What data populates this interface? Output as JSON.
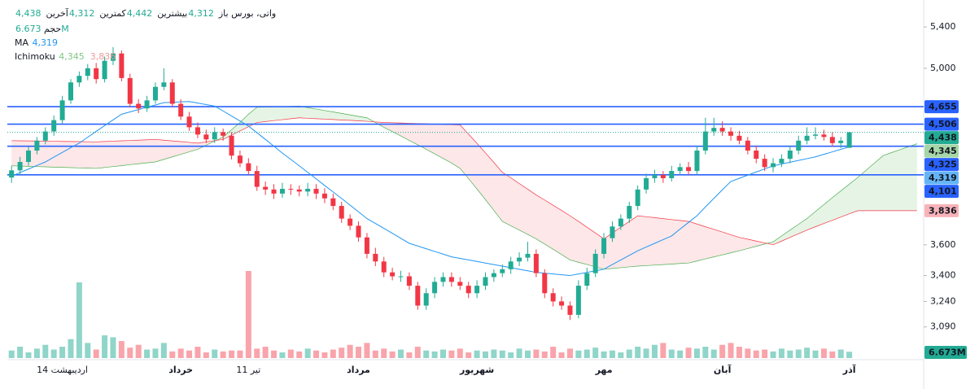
{
  "chart_data": {
    "type": "candlestick",
    "header": {
      "symbol": "واتی، بورس",
      "fields": [
        {
          "name": "باز",
          "value": "4,312"
        },
        {
          "name": "بیشترین",
          "value": "4,442"
        },
        {
          "name": "کمترین",
          "value": "4,312"
        },
        {
          "name": "آخرین",
          "value": "4,438"
        }
      ]
    },
    "categories": [
      null,
      null,
      null,
      null,
      null,
      null,
      "14 اردیبهشت",
      null,
      null,
      null,
      null,
      null,
      null,
      null,
      null,
      null,
      null,
      null,
      null,
      null,
      "خرداد",
      null,
      null,
      null,
      null,
      null,
      null,
      null,
      "11 تیر",
      null,
      null,
      null,
      null,
      null,
      null,
      null,
      null,
      null,
      null,
      null,
      null,
      "مرداد",
      null,
      null,
      null,
      null,
      null,
      null,
      null,
      null,
      null,
      null,
      null,
      null,
      null,
      "شهریور",
      null,
      null,
      null,
      null,
      null,
      null,
      null,
      null,
      null,
      null,
      null,
      null,
      null,
      null,
      "مهر",
      null,
      null,
      null,
      null,
      null,
      null,
      null,
      null,
      null,
      null,
      null,
      null,
      null,
      "آبان",
      null,
      null,
      null,
      null,
      null,
      null,
      null,
      null,
      null,
      null,
      null,
      null,
      null,
      null,
      "آذر",
      null,
      null,
      null,
      null,
      null,
      null,
      null,
      null
    ],
    "ylim": [
      2907,
      5592
    ],
    "log_scale": true,
    "yticks": [
      {
        "value": 5400,
        "label": "5,400"
      },
      {
        "value": 5000,
        "label": "5,000"
      },
      {
        "value": 3600,
        "label": "3,600"
      },
      {
        "value": 3400,
        "label": "3,400"
      },
      {
        "value": 3240,
        "label": "3,240"
      },
      {
        "value": 3090,
        "label": "3,090"
      }
    ],
    "up_color": "#22ab94",
    "down_color": "#f23645",
    "candles": {
      "open": [
        4080,
        4135,
        4200,
        4290,
        4370,
        4445,
        4540,
        4710,
        4870,
        4930,
        5000,
        4900,
        5070,
        5140,
        4910,
        4680,
        4640,
        4710,
        4830,
        4870,
        4680,
        4570,
        4480,
        4420,
        4380,
        4440,
        4410,
        4250,
        4190,
        4130,
        4010,
        3990,
        3960,
        3995,
        3990,
        3975,
        3995,
        3960,
        3925,
        3870,
        3780,
        3730,
        3650,
        3540,
        3490,
        3420,
        3395,
        3395,
        3336,
        3215,
        3290,
        3360,
        3390,
        3360,
        3336,
        3290,
        3336,
        3390,
        3415,
        3440,
        3490,
        3515,
        3540,
        3415,
        3290,
        3240,
        3215,
        3160,
        3336,
        3415,
        3540,
        3645,
        3725,
        3780,
        3870,
        3990,
        4075,
        4100,
        4075,
        4130,
        4160,
        4130,
        4290,
        4445,
        4475,
        4445,
        4410,
        4370,
        4290,
        4225,
        4160,
        4190,
        4225,
        4290,
        4370,
        4410,
        4420,
        4400,
        4350,
        4312,
        null,
        null,
        null,
        null,
        null,
        null,
        null,
        null
      ],
      "high": [
        4170,
        4240,
        4320,
        4400,
        4480,
        4580,
        4750,
        4900,
        4970,
        5040,
        5050,
        5110,
        5200,
        5170,
        4950,
        4720,
        4750,
        4870,
        5000,
        4900,
        4720,
        4610,
        4520,
        4460,
        4480,
        4470,
        4440,
        4290,
        4230,
        4170,
        4050,
        4030,
        4040,
        4030,
        4020,
        4040,
        4030,
        4000,
        3960,
        3900,
        3810,
        3760,
        3680,
        3580,
        3520,
        3450,
        3430,
        3420,
        3360,
        3320,
        3390,
        3420,
        3420,
        3390,
        3360,
        3370,
        3420,
        3440,
        3470,
        3520,
        3550,
        3620,
        3570,
        3440,
        3320,
        3270,
        3240,
        3370,
        3450,
        3570,
        3680,
        3760,
        3810,
        3900,
        4020,
        4110,
        4140,
        4130,
        4170,
        4190,
        4200,
        4330,
        4560,
        4560,
        4530,
        4480,
        4450,
        4400,
        4330,
        4260,
        4230,
        4260,
        4330,
        4410,
        4480,
        4480,
        4460,
        4440,
        4400,
        4442,
        null,
        null,
        null,
        null,
        null,
        null,
        null,
        null
      ],
      "low": [
        4040,
        4100,
        4170,
        4260,
        4340,
        4410,
        4510,
        4680,
        4830,
        4890,
        4860,
        4870,
        5030,
        4880,
        4650,
        4600,
        4610,
        4680,
        4800,
        4650,
        4540,
        4450,
        4390,
        4350,
        4350,
        4370,
        4220,
        4160,
        4100,
        3980,
        3950,
        3920,
        3930,
        3950,
        3940,
        3940,
        3920,
        3890,
        3840,
        3750,
        3700,
        3620,
        3510,
        3460,
        3390,
        3370,
        3360,
        3310,
        3190,
        3190,
        3260,
        3330,
        3330,
        3310,
        3260,
        3260,
        3310,
        3360,
        3390,
        3410,
        3460,
        3490,
        3390,
        3260,
        3210,
        3190,
        3130,
        3140,
        3310,
        3390,
        3510,
        3620,
        3700,
        3750,
        3840,
        3960,
        4040,
        4040,
        4050,
        4100,
        4100,
        4100,
        4260,
        4410,
        4410,
        4370,
        4340,
        4260,
        4190,
        4130,
        4120,
        4160,
        4190,
        4260,
        4340,
        4380,
        4370,
        4320,
        4310,
        4312,
        null,
        null,
        null,
        null,
        null,
        null,
        null,
        null
      ],
      "close": [
        4135,
        4200,
        4290,
        4370,
        4445,
        4540,
        4710,
        4870,
        4930,
        5000,
        4900,
        5070,
        5140,
        4910,
        4680,
        4640,
        4710,
        4830,
        4870,
        4680,
        4570,
        4480,
        4420,
        4380,
        4440,
        4410,
        4250,
        4190,
        4130,
        4010,
        3990,
        3960,
        3995,
        3990,
        3975,
        3995,
        3960,
        3925,
        3870,
        3780,
        3730,
        3650,
        3540,
        3490,
        3420,
        3395,
        3395,
        3336,
        3215,
        3290,
        3360,
        3390,
        3360,
        3336,
        3290,
        3336,
        3390,
        3415,
        3440,
        3490,
        3515,
        3540,
        3415,
        3290,
        3240,
        3215,
        3160,
        3336,
        3415,
        3540,
        3645,
        3725,
        3780,
        3870,
        3990,
        4075,
        4100,
        4075,
        4130,
        4160,
        4130,
        4290,
        4445,
        4475,
        4445,
        4410,
        4370,
        4290,
        4225,
        4160,
        4190,
        4225,
        4290,
        4370,
        4410,
        4420,
        4400,
        4350,
        4370,
        4438,
        null,
        null,
        null,
        null,
        null,
        null,
        null,
        null
      ]
    },
    "volume": {
      "name": "حجم",
      "value_label": "6.673M",
      "values": [
        8,
        12,
        6,
        10,
        14,
        9,
        12,
        20,
        80,
        16,
        9,
        24,
        22,
        18,
        11,
        14,
        9,
        10,
        16,
        7,
        10,
        8,
        12,
        6,
        9,
        7,
        8,
        8,
        92,
        10,
        12,
        8,
        6,
        9,
        7,
        10,
        8,
        6,
        9,
        11,
        14,
        12,
        16,
        8,
        10,
        7,
        9,
        6,
        12,
        8,
        7,
        9,
        8,
        10,
        6,
        8,
        7,
        9,
        8,
        6,
        10,
        8,
        9,
        7,
        12,
        6,
        10,
        8,
        9,
        11,
        7,
        8,
        6,
        9,
        12,
        10,
        14,
        16,
        9,
        8,
        11,
        10,
        12,
        9,
        14,
        16,
        12,
        10,
        8,
        9,
        7,
        10,
        8,
        9,
        11,
        8,
        10,
        7,
        9,
        6.673,
        null,
        null,
        null,
        null,
        null,
        null,
        null,
        null
      ]
    },
    "ma": {
      "name": "MA",
      "color": "#2196f3",
      "value_label": "4,319",
      "values": [
        4090,
        4118,
        4145,
        4173,
        4200,
        4238,
        4275,
        4313,
        4350,
        4398,
        4446,
        4494,
        4542,
        4590,
        4610,
        4630,
        4650,
        4670,
        4690,
        4693,
        4697,
        4700,
        4687,
        4673,
        4660,
        4618,
        4575,
        4533,
        4490,
        4435,
        4380,
        4325,
        4270,
        4220,
        4170,
        4120,
        4070,
        4020,
        3972,
        3924,
        3876,
        3828,
        3780,
        3746,
        3712,
        3678,
        3644,
        3610,
        3592,
        3574,
        3556,
        3538,
        3520,
        3510,
        3500,
        3490,
        3480,
        3470,
        3460,
        3450,
        3440,
        3430,
        3420,
        3415,
        3410,
        3405,
        3400,
        3410,
        3420,
        3430,
        3440,
        3470,
        3500,
        3530,
        3560,
        3585,
        3610,
        3635,
        3660,
        3707,
        3753,
        3800,
        3863,
        3925,
        3988,
        4050,
        4074,
        4098,
        4122,
        4146,
        4170,
        4184,
        4198,
        4212,
        4226,
        4240,
        4260,
        4280,
        4300,
        4319,
        null,
        null,
        null,
        null,
        null,
        null,
        null,
        null
      ]
    },
    "ichimoku": {
      "name": "Ichimoku",
      "span_a": {
        "color": "#4caf50",
        "value_label": "4,345",
        "values": [
          4170,
          4168,
          4166,
          4164,
          4162,
          4160,
          4158,
          4156,
          4154,
          4152,
          4150,
          4157,
          4164,
          4171,
          4179,
          4186,
          4193,
          4200,
          4220,
          4240,
          4260,
          4280,
          4300,
          4333,
          4367,
          4400,
          4460,
          4520,
          4590,
          4650,
          4652,
          4654,
          4656,
          4658,
          4660,
          4647,
          4635,
          4622,
          4610,
          4597,
          4585,
          4572,
          4560,
          4520,
          4480,
          4444,
          4408,
          4372,
          4336,
          4300,
          4264,
          4228,
          4192,
          4150,
          4072,
          3994,
          3916,
          3838,
          3760,
          3730,
          3700,
          3670,
          3640,
          3605,
          3570,
          3535,
          3500,
          3485,
          3470,
          3455,
          3440,
          3445,
          3450,
          3455,
          3460,
          3463,
          3467,
          3470,
          3473,
          3477,
          3480,
          3493,
          3507,
          3520,
          3533,
          3547,
          3560,
          3575,
          3590,
          3605,
          3620,
          3660,
          3700,
          3740,
          3780,
          3830,
          3880,
          3930,
          3980,
          4030,
          4080,
          4137,
          4193,
          4250,
          4274,
          4298,
          4321,
          4345
        ]
      },
      "span_b": {
        "color": "#f23645",
        "value_label": "3,836",
        "values": [
          4370,
          4369,
          4368,
          4367,
          4366,
          4365,
          4364,
          4363,
          4362,
          4361,
          4360,
          4363,
          4366,
          4369,
          4371,
          4374,
          4377,
          4380,
          4374,
          4368,
          4362,
          4356,
          4350,
          4360,
          4370,
          4380,
          4415,
          4450,
          4485,
          4520,
          4528,
          4536,
          4544,
          4552,
          4560,
          4556,
          4552,
          4549,
          4545,
          4541,
          4538,
          4534,
          4530,
          4525,
          4520,
          4518,
          4516,
          4513,
          4511,
          4509,
          4507,
          4504,
          4502,
          4500,
          4424,
          4348,
          4272,
          4196,
          4120,
          4078,
          4035,
          3993,
          3950,
          3913,
          3875,
          3838,
          3800,
          3760,
          3720,
          3680,
          3640,
          3680,
          3720,
          3760,
          3800,
          3793,
          3787,
          3780,
          3773,
          3767,
          3760,
          3742,
          3723,
          3705,
          3687,
          3668,
          3650,
          3638,
          3625,
          3613,
          3600,
          3625,
          3650,
          3675,
          3700,
          3723,
          3746,
          3768,
          3791,
          3814,
          3836,
          3836,
          3836,
          3836,
          3836,
          3836,
          3836,
          3836
        ]
      }
    },
    "level_color": "#2962ff",
    "levels": [
      {
        "value": 4655,
        "label": "4,655"
      },
      {
        "value": 4506,
        "label": "4,506"
      },
      {
        "value": 4325,
        "label": "4,325"
      },
      {
        "value": 4101,
        "label": "4,101"
      }
    ],
    "last": {
      "value": 4438,
      "label": "4,438"
    }
  }
}
